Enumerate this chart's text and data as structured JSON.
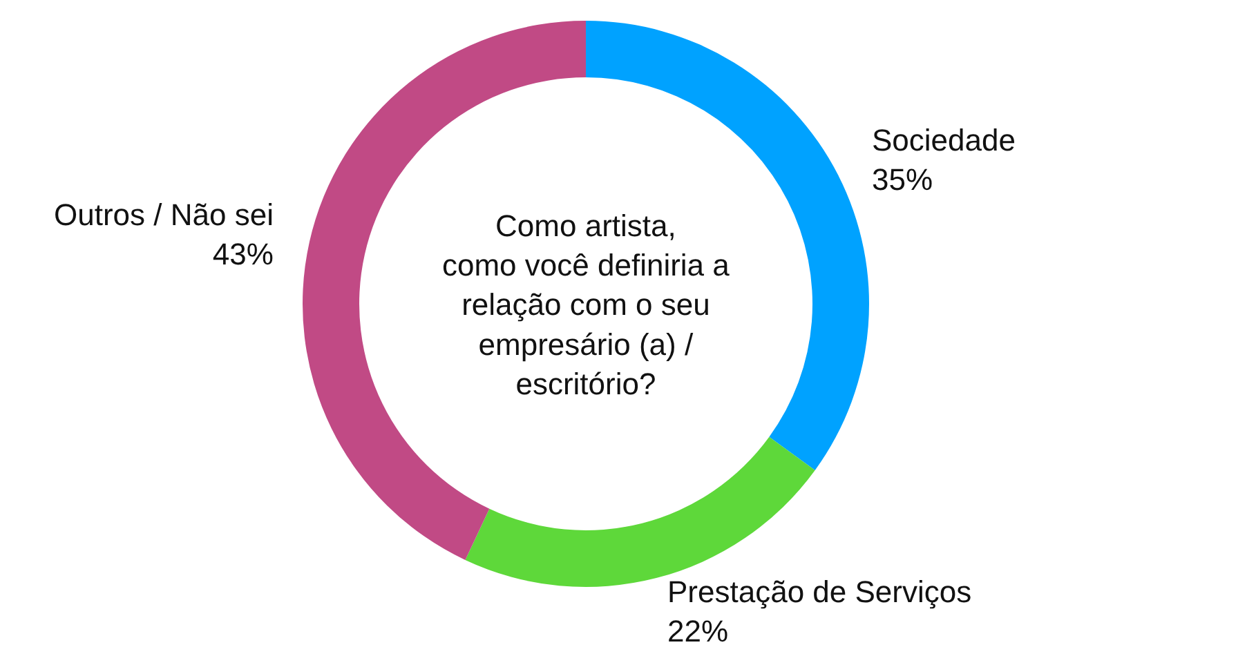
{
  "chart_data": {
    "type": "donut",
    "title": "Como artista,\ncomo você definiria a\nrelação com o seu\nempresário (a) /\nescritório?",
    "categories": [
      "Sociedade",
      "Prestação de Serviços",
      "Outros / Não sei"
    ],
    "values": [
      35,
      22,
      43
    ],
    "colors": [
      "#00a2ff",
      "#5ed83a",
      "#c14a85"
    ],
    "value_labels": [
      "35%",
      "22%",
      "43%"
    ]
  }
}
